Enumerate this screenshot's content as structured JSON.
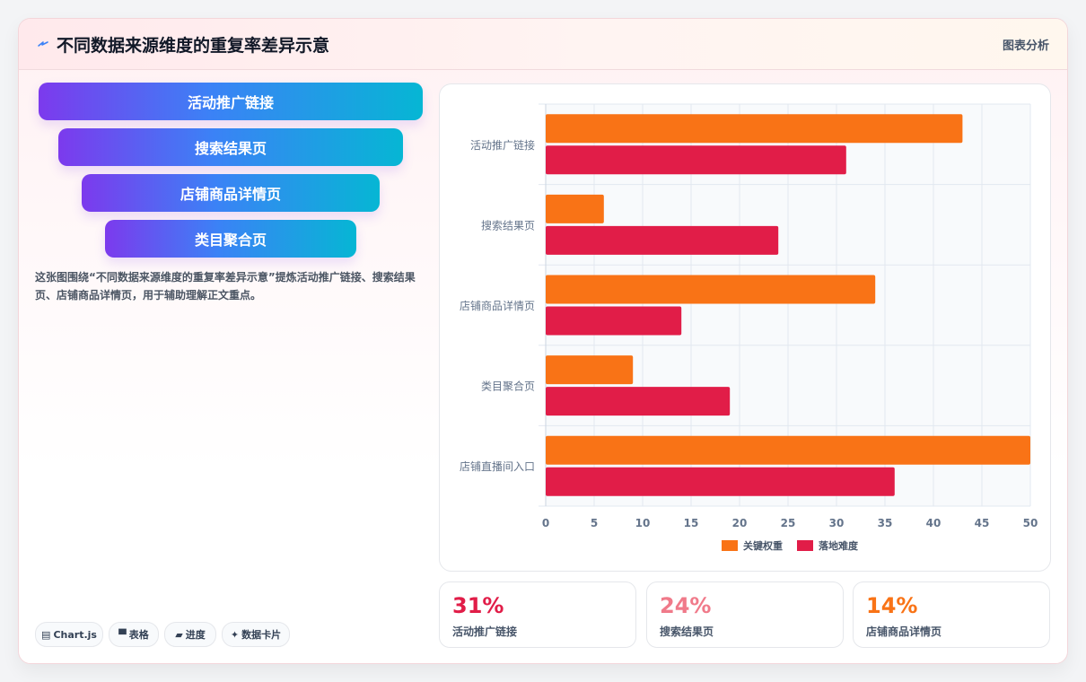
{
  "header": {
    "icon": "lightning-icon",
    "title": "不同数据来源维度的重复率差异示意",
    "tag": "图表分析"
  },
  "funnel": [
    "活动推广链接",
    "搜索结果页",
    "店铺商品详情页",
    "类目聚合页"
  ],
  "description": "这张图围绕“不同数据来源维度的重复率差异示意”提炼活动推广链接、搜索结果页、店铺商品详情页，用于辅助理解正文重点。",
  "pills": [
    {
      "icon": "chart-icon",
      "glyph": "▤",
      "label": "Chart.js"
    },
    {
      "icon": "table-icon",
      "glyph": "▀",
      "label": "表格"
    },
    {
      "icon": "progress-icon",
      "glyph": "▰",
      "label": "进度"
    },
    {
      "icon": "sparkle-icon",
      "glyph": "✦",
      "label": "数据卡片"
    }
  ],
  "stats": [
    {
      "value": "31%",
      "label": "活动推广链接",
      "color": "#e11d48"
    },
    {
      "value": "24%",
      "label": "搜索结果页",
      "color": "#f07a8a"
    },
    {
      "value": "14%",
      "label": "店铺商品详情页",
      "color": "#f97316"
    }
  ],
  "chart_data": {
    "type": "bar",
    "orientation": "horizontal",
    "categories": [
      "活动推广链接",
      "搜索结果页",
      "店铺商品详情页",
      "类目聚合页",
      "店铺直播间入口"
    ],
    "series": [
      {
        "name": "关键权重",
        "values": [
          43,
          6,
          34,
          9,
          50
        ],
        "color": "#f97316"
      },
      {
        "name": "落地难度",
        "values": [
          31,
          24,
          14,
          19,
          36
        ],
        "color": "#e11d48"
      }
    ],
    "xlim": [
      0,
      50
    ],
    "xticks": [
      0,
      5,
      10,
      15,
      20,
      25,
      30,
      35,
      40,
      45,
      50
    ],
    "grid": true,
    "legend": "bottom"
  }
}
